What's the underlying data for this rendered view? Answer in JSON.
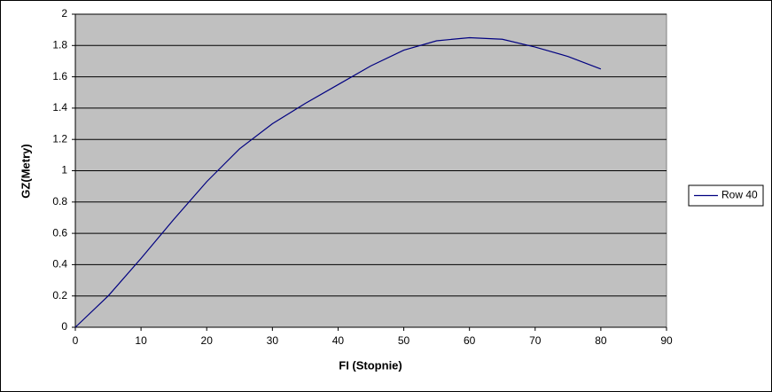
{
  "chart_data": {
    "type": "line",
    "x_label": "FI (Stopnie)",
    "y_label": "GZ(Metry)",
    "x": [
      0,
      5,
      10,
      15,
      20,
      25,
      30,
      35,
      40,
      45,
      50,
      55,
      60,
      65,
      70,
      75,
      80
    ],
    "series": [
      {
        "name": "Row 40",
        "color": "#000080",
        "values": [
          0,
          0.2,
          0.44,
          0.69,
          0.93,
          1.14,
          1.3,
          1.43,
          1.55,
          1.67,
          1.77,
          1.83,
          1.85,
          1.84,
          1.79,
          1.73,
          1.65
        ]
      }
    ],
    "xlim": [
      0,
      90
    ],
    "xticks": [
      0,
      10,
      20,
      30,
      40,
      50,
      60,
      70,
      80,
      90
    ],
    "ylim": [
      0,
      2
    ],
    "yticks": [
      0,
      0.2,
      0.4,
      0.6,
      0.8,
      1,
      1.2,
      1.4,
      1.6,
      1.8,
      2
    ],
    "grid": true,
    "legend": "right",
    "plot_background": "#c0c0c0"
  }
}
